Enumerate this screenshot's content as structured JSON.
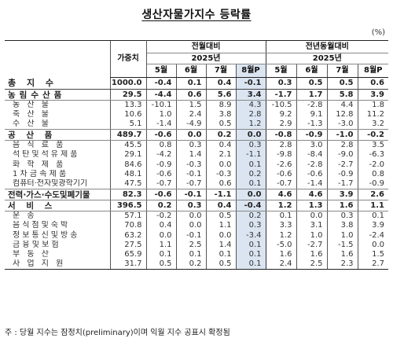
{
  "title": "생산자물가지수 등락률",
  "unit": "(%)",
  "header": {
    "weight": "가중치",
    "mom": "전월대비",
    "yoy": "전년동월대비",
    "year": "2025년",
    "months": [
      "5월",
      "6월",
      "7월",
      "8월P"
    ]
  },
  "rows": [
    {
      "type": "total",
      "name": "총 지 수",
      "weight": "1000.0",
      "mom": [
        "-0.4",
        "0.1",
        "0.4",
        "-0.1"
      ],
      "yoy": [
        "0.3",
        "0.5",
        "0.5",
        "0.6"
      ]
    },
    {
      "type": "major",
      "name": "농림수산품",
      "weight": "29.5",
      "mom": [
        "-4.4",
        "0.6",
        "5.6",
        "3.4"
      ],
      "yoy": [
        "-1.7",
        "1.7",
        "5.8",
        "3.9"
      ]
    },
    {
      "type": "sub",
      "name": "농 산 물",
      "weight": "13.3",
      "mom": [
        "-10.1",
        "1.5",
        "8.9",
        "4.3"
      ],
      "yoy": [
        "-10.5",
        "-2.8",
        "4.4",
        "1.8"
      ]
    },
    {
      "type": "sub",
      "name": "축 산 물",
      "weight": "10.6",
      "mom": [
        "1.0",
        "2.4",
        "3.8",
        "2.8"
      ],
      "yoy": [
        "9.2",
        "9.1",
        "12.8",
        "11.2"
      ]
    },
    {
      "type": "sub",
      "name": "수 산 물",
      "weight": "5.1",
      "mom": [
        "-1.4",
        "-4.9",
        "0.5",
        "1.2"
      ],
      "yoy": [
        "2.9",
        "-1.3",
        "-3.0",
        "3.2"
      ]
    },
    {
      "type": "major",
      "name": "공 산 품",
      "weight": "489.7",
      "mom": [
        "-0.6",
        "0.0",
        "0.2",
        "0.0"
      ],
      "yoy": [
        "-0.8",
        "-0.9",
        "-1.0",
        "-0.2"
      ]
    },
    {
      "type": "sub",
      "name": "음 식 료 품",
      "weight": "45.5",
      "mom": [
        "0.8",
        "0.3",
        "0.4",
        "0.3"
      ],
      "yoy": [
        "2.8",
        "3.0",
        "2.8",
        "3.5"
      ]
    },
    {
      "type": "sub",
      "name": "석탄및석유제품",
      "weight": "29.1",
      "mom": [
        "-4.2",
        "1.4",
        "2.1",
        "-1.1"
      ],
      "yoy": [
        "-9.8",
        "-8.4",
        "-9.0",
        "-6.3"
      ]
    },
    {
      "type": "sub",
      "name": "화 학 제 품",
      "weight": "84.6",
      "mom": [
        "-0.9",
        "-0.3",
        "0.0",
        "0.1"
      ],
      "yoy": [
        "-2.6",
        "-2.8",
        "-2.7",
        "-2.0"
      ]
    },
    {
      "type": "sub",
      "name": "1 차 금 속 제 품",
      "weight": "48.1",
      "mom": [
        "-0.6",
        "-0.1",
        "-0.3",
        "0.2"
      ],
      "yoy": [
        "-0.6",
        "-0.6",
        "-0.9",
        "0.8"
      ]
    },
    {
      "type": "sub",
      "name": "컴퓨터·전자및광학기기",
      "weight": "47.5",
      "mom": [
        "-0.7",
        "-0.7",
        "0.6",
        "0.1"
      ],
      "yoy": [
        "-0.7",
        "-1.4",
        "-1.7",
        "-0.9"
      ]
    },
    {
      "type": "major",
      "name": "전력·가스·수도및폐기물",
      "weight": "82.3",
      "mom": [
        "-0.6",
        "-0.1",
        "-1.1",
        "0.0"
      ],
      "yoy": [
        "4.6",
        "4.6",
        "3.9",
        "2.6"
      ]
    },
    {
      "type": "major",
      "name": "서 비 스",
      "weight": "396.5",
      "mom": [
        "0.2",
        "0.3",
        "0.4",
        "-0.4"
      ],
      "yoy": [
        "1.2",
        "1.3",
        "1.6",
        "1.1"
      ]
    },
    {
      "type": "sub",
      "name": "운 송",
      "weight": "57.1",
      "mom": [
        "-0.2",
        "0.0",
        "0.5",
        "0.2"
      ],
      "yoy": [
        "0.1",
        "0.0",
        "0.3",
        "0.1"
      ]
    },
    {
      "type": "sub",
      "name": "음식점및숙박",
      "weight": "70.8",
      "mom": [
        "0.4",
        "0.0",
        "1.1",
        "0.3"
      ],
      "yoy": [
        "3.3",
        "3.1",
        "3.8",
        "3.9"
      ]
    },
    {
      "type": "sub",
      "name": "정보통신및방송",
      "weight": "63.2",
      "mom": [
        "0.0",
        "-0.1",
        "0.0",
        "-3.4"
      ],
      "yoy": [
        "1.2",
        "1.0",
        "1.0",
        "-2.4"
      ]
    },
    {
      "type": "sub",
      "name": "금 융 및 보 험",
      "weight": "27.5",
      "mom": [
        "1.1",
        "2.5",
        "1.4",
        "0.1"
      ],
      "yoy": [
        "-5.0",
        "-2.7",
        "-1.5",
        "0.0"
      ]
    },
    {
      "type": "sub",
      "name": "부 동 산",
      "weight": "65.9",
      "mom": [
        "0.1",
        "0.1",
        "0.1",
        "0.1"
      ],
      "yoy": [
        "1.6",
        "1.6",
        "1.6",
        "1.5"
      ]
    },
    {
      "type": "sub",
      "name": "사 업 지 원",
      "weight": "31.7",
      "mom": [
        "0.5",
        "0.2",
        "0.5",
        "0.1"
      ],
      "yoy": [
        "2.4",
        "2.5",
        "2.3",
        "2.7"
      ]
    }
  ],
  "footnote": "주 : 당월 지수는 잠정치(preliminary)이며 익월 지수 공표시 확정됨"
}
